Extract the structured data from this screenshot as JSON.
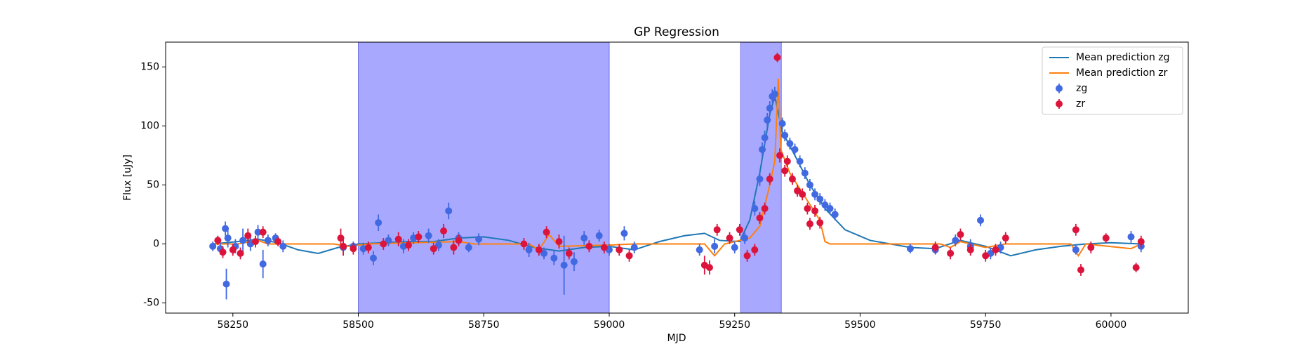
{
  "chart_data": {
    "type": "errorbar",
    "title": "GP Regression",
    "xlabel": "MJD",
    "ylabel": "Flux [uJy]",
    "xlim": [
      58116,
      60154
    ],
    "ylim": [
      -58.6,
      171
    ],
    "xticks": [
      58250,
      58500,
      58750,
      59000,
      59250,
      59500,
      59750,
      60000
    ],
    "yticks": [
      -50,
      0,
      50,
      100,
      150
    ],
    "legend": "upper right",
    "spans": [
      {
        "x": [
          58500,
          59000
        ],
        "color": "#a8a8ff"
      },
      {
        "x": [
          59262,
          59343
        ],
        "color": "#a8a8ff"
      }
    ],
    "series": [
      {
        "name": "Mean prediction zg",
        "kind": "line",
        "color": "#1f77b4",
        "x": [
          58210,
          58260,
          58300,
          58340,
          58380,
          58420,
          58460,
          58500,
          58550,
          58600,
          58650,
          58700,
          58750,
          58800,
          58850,
          58900,
          58950,
          59000,
          59050,
          59100,
          59150,
          59190,
          59220,
          59260,
          59280,
          59300,
          59320,
          59330,
          59345,
          59370,
          59400,
          59430,
          59470,
          59520,
          59600,
          59650,
          59700,
          59750,
          59800,
          59850,
          59900,
          59950,
          60000,
          60060
        ],
        "values": [
          0,
          2,
          4,
          1,
          -5,
          -8,
          -3,
          0,
          1,
          2,
          2,
          5,
          6,
          3,
          -3,
          -6,
          -3,
          -2,
          -5,
          2,
          7,
          9,
          3,
          2,
          20,
          60,
          110,
          125,
          95,
          75,
          50,
          30,
          12,
          3,
          -3,
          -4,
          3,
          -2,
          -10,
          -5,
          -2,
          0,
          1,
          0
        ]
      },
      {
        "name": "Mean prediction zr",
        "kind": "line",
        "color": "#ff7f0e",
        "x": [
          58210,
          58260,
          58300,
          58320,
          58450,
          58480,
          58520,
          58700,
          58730,
          58840,
          58860,
          58880,
          58900,
          59000,
          59050,
          59190,
          59210,
          59230,
          59280,
          59300,
          59320,
          59330,
          59337,
          59342,
          59360,
          59390,
          59420,
          59430,
          59440,
          59660,
          59680,
          59700,
          59750,
          59790,
          59920,
          59935,
          59950,
          60040,
          60060
        ],
        "values": [
          0,
          0,
          3,
          0,
          0,
          -2,
          0,
          2,
          0,
          0,
          -5,
          8,
          -2,
          -1,
          0,
          0,
          -10,
          0,
          5,
          15,
          50,
          70,
          140,
          80,
          60,
          40,
          20,
          2,
          0,
          0,
          -3,
          2,
          -3,
          0,
          0,
          -10,
          0,
          -4,
          0
        ]
      },
      {
        "name": "zg",
        "kind": "errorbar",
        "color": "#4169e1",
        "x": [
          58210,
          58225,
          58235,
          58237,
          58240,
          58255,
          58270,
          58285,
          58300,
          58310,
          58320,
          58335,
          58350,
          58470,
          58490,
          58510,
          58530,
          58540,
          58560,
          58590,
          58610,
          58640,
          58660,
          58680,
          58700,
          58720,
          58740,
          58840,
          58870,
          58890,
          58910,
          58930,
          58950,
          58980,
          59000,
          59030,
          59050,
          59180,
          59210,
          59250,
          59270,
          59290,
          59300,
          59305,
          59310,
          59315,
          59320,
          59325,
          59330,
          59345,
          59350,
          59360,
          59370,
          59380,
          59390,
          59400,
          59410,
          59420,
          59430,
          59440,
          59450,
          59600,
          59650,
          59690,
          59720,
          59740,
          59760,
          59780,
          59930,
          60040,
          60060
        ],
        "values": [
          -2,
          -4,
          13,
          -34,
          5,
          -2,
          3,
          0,
          10,
          -17,
          3,
          5,
          -2,
          -3,
          -2,
          -4,
          -12,
          18,
          3,
          -2,
          5,
          7,
          -1,
          28,
          5,
          -3,
          4,
          -5,
          -8,
          -12,
          -18,
          -15,
          5,
          7,
          -5,
          9,
          -3,
          -5,
          -2,
          -3,
          5,
          30,
          55,
          80,
          90,
          105,
          115,
          125,
          127,
          102,
          92,
          85,
          80,
          70,
          60,
          50,
          42,
          38,
          33,
          30,
          25,
          -4,
          -5,
          3,
          -2,
          20,
          -8,
          -3,
          -5,
          6,
          -2
        ],
        "errors": [
          4,
          5,
          6,
          13,
          8,
          6,
          10,
          6,
          6,
          12,
          5,
          4,
          5,
          5,
          4,
          5,
          6,
          7,
          5,
          6,
          5,
          6,
          5,
          7,
          5,
          4,
          5,
          6,
          5,
          6,
          25,
          8,
          6,
          5,
          5,
          6,
          5,
          5,
          6,
          5,
          5,
          6,
          6,
          6,
          6,
          6,
          6,
          6,
          6,
          5,
          5,
          5,
          5,
          5,
          5,
          5,
          5,
          5,
          5,
          5,
          5,
          4,
          4,
          5,
          6,
          5,
          5,
          5,
          4,
          5,
          5
        ]
      },
      {
        "name": "zr",
        "kind": "errorbar",
        "color": "#dc143c",
        "x": [
          58220,
          58230,
          58250,
          58265,
          58280,
          58295,
          58310,
          58340,
          58465,
          58470,
          58490,
          58520,
          58550,
          58580,
          58600,
          58620,
          58650,
          58670,
          58690,
          58700,
          58830,
          58860,
          58875,
          58900,
          58920,
          58960,
          58990,
          59020,
          59040,
          59190,
          59200,
          59215,
          59240,
          59260,
          59275,
          59290,
          59300,
          59310,
          59320,
          59335,
          59340,
          59350,
          59355,
          59365,
          59375,
          59385,
          59395,
          59400,
          59410,
          59420,
          59650,
          59680,
          59700,
          59720,
          59750,
          59770,
          59790,
          59930,
          59940,
          59960,
          59990,
          60050,
          60060
        ],
        "values": [
          3,
          -7,
          -5,
          -8,
          7,
          2,
          10,
          2,
          5,
          -2,
          -4,
          -3,
          0,
          4,
          -1,
          6,
          -4,
          11,
          -3,
          3,
          0,
          -5,
          10,
          2,
          -8,
          -2,
          -3,
          -5,
          -10,
          -18,
          -20,
          12,
          5,
          12,
          -10,
          -5,
          22,
          30,
          55,
          158,
          75,
          62,
          70,
          55,
          45,
          42,
          30,
          17,
          28,
          18,
          -3,
          -8,
          8,
          -5,
          -10,
          -5,
          5,
          12,
          -22,
          -3,
          5,
          -20,
          2
        ],
        "errors": [
          4,
          5,
          5,
          5,
          6,
          5,
          5,
          4,
          8,
          8,
          5,
          5,
          5,
          6,
          5,
          5,
          5,
          6,
          6,
          5,
          5,
          5,
          5,
          6,
          5,
          5,
          5,
          5,
          5,
          8,
          6,
          5,
          5,
          5,
          5,
          5,
          5,
          5,
          5,
          4,
          6,
          5,
          5,
          5,
          5,
          5,
          5,
          5,
          5,
          5,
          5,
          5,
          5,
          5,
          5,
          5,
          5,
          5,
          5,
          5,
          4,
          4,
          5
        ]
      }
    ]
  }
}
